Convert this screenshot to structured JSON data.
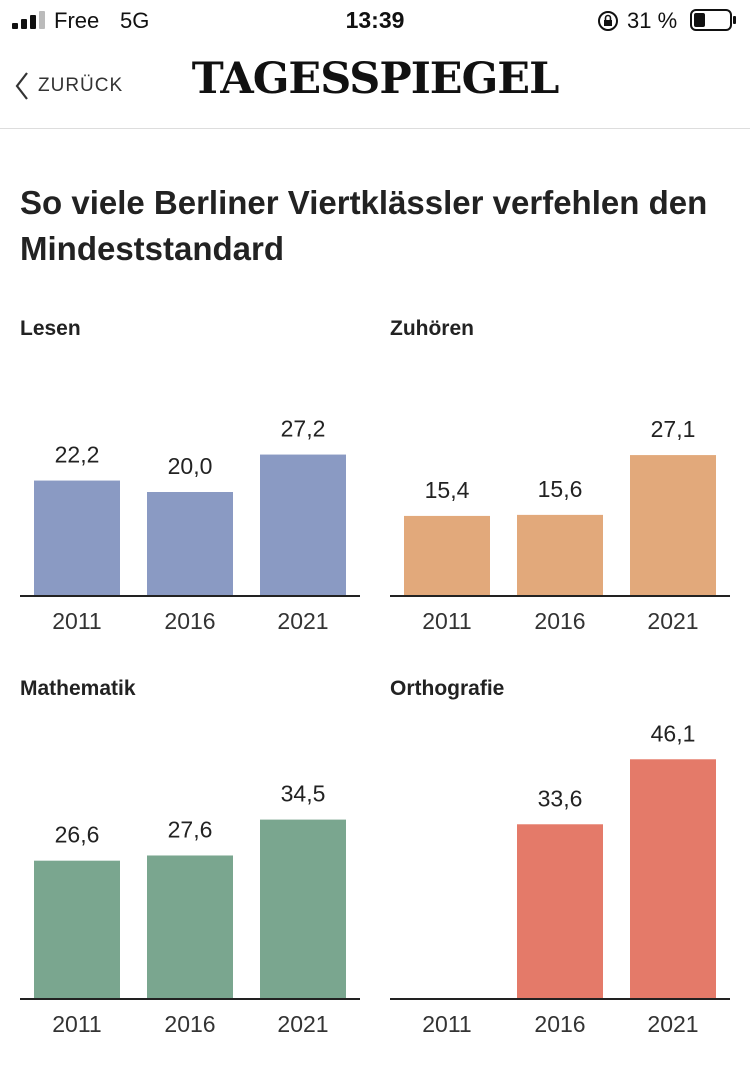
{
  "status_bar": {
    "carrier": "Free",
    "network": "5G",
    "time": "13:39",
    "battery": "31 %"
  },
  "nav": {
    "back_label": "ZURÜCK",
    "logo": "TAGESSPIEGEL"
  },
  "title": "So viele Berliner Viertklässler verfehlen den Mindeststandard",
  "chart_data": [
    {
      "type": "bar",
      "title": "Lesen",
      "categories": [
        "2011",
        "2016",
        "2021"
      ],
      "values": [
        22.2,
        20.0,
        27.2
      ],
      "value_labels": [
        "22,2",
        "20,0",
        "27,2"
      ],
      "color": "#8a9ac3",
      "ylim": [
        0,
        50
      ]
    },
    {
      "type": "bar",
      "title": "Zuhören",
      "categories": [
        "2011",
        "2016",
        "2021"
      ],
      "values": [
        15.4,
        15.6,
        27.1
      ],
      "value_labels": [
        "15,4",
        "15,6",
        "27,1"
      ],
      "color": "#e2a97b",
      "ylim": [
        0,
        50
      ]
    },
    {
      "type": "bar",
      "title": "Mathematik",
      "categories": [
        "2011",
        "2016",
        "2021"
      ],
      "values": [
        26.6,
        27.6,
        34.5
      ],
      "value_labels": [
        "26,6",
        "27,6",
        "34,5"
      ],
      "color": "#7aa68f",
      "ylim": [
        0,
        50
      ]
    },
    {
      "type": "bar",
      "title": "Orthografie",
      "categories": [
        "2011",
        "2016",
        "2021"
      ],
      "values": [
        null,
        33.6,
        46.1
      ],
      "value_labels": [
        "",
        "33,6",
        "46,1"
      ],
      "color": "#e47a69",
      "ylim": [
        0,
        50
      ]
    }
  ]
}
